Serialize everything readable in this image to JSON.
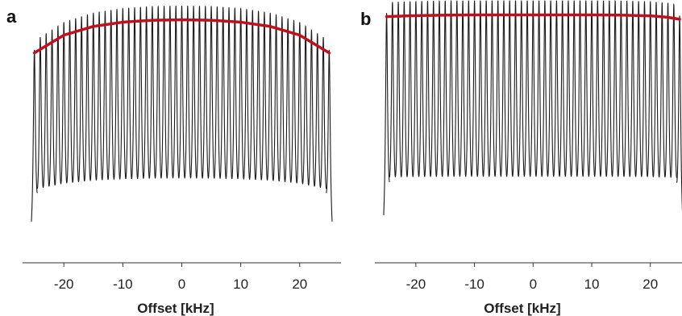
{
  "colors": {
    "peaks": "#1a1a1a",
    "envelope": "#c0101e",
    "axis": "#333333"
  },
  "chart_data": [
    {
      "panel_label": "a",
      "type": "line",
      "xlabel": "Offset [kHz]",
      "ylabel": "",
      "xlim": [
        -27,
        27
      ],
      "xticks": [
        -20,
        -10,
        0,
        10,
        20
      ],
      "tick_labels": [
        "-20",
        "-10",
        "0",
        "10",
        "20"
      ],
      "peaks": {
        "start": -25,
        "end": 25,
        "count": 51,
        "width_khz": 0.22
      },
      "envelope": {
        "x": [
          -25,
          -20,
          -15,
          -10,
          -5,
          0,
          5,
          10,
          15,
          20,
          25
        ],
        "y": [
          0.86,
          0.935,
          0.972,
          0.99,
          0.998,
          1.0,
          0.998,
          0.99,
          0.972,
          0.935,
          0.86
        ]
      },
      "ylim": [
        0,
        1.07
      ]
    },
    {
      "panel_label": "b",
      "type": "line",
      "xlabel": "Offset [kHz]",
      "ylabel": "",
      "xlim": [
        -27,
        25.4
      ],
      "xticks": [
        -20,
        -10,
        0,
        10,
        20
      ],
      "tick_labels": [
        "-20",
        "-10",
        "0",
        "10",
        "20"
      ],
      "peaks": {
        "start": -25,
        "end": 25,
        "count": 51,
        "width_khz": 0.22
      },
      "envelope": {
        "x": [
          -25,
          -20,
          -15,
          -10,
          -5,
          0,
          5,
          10,
          15,
          20,
          23,
          25
        ],
        "y": [
          0.993,
          0.997,
          0.999,
          1.0,
          1.0,
          1.0,
          1.0,
          1.0,
          0.999,
          0.996,
          0.99,
          0.982
        ]
      },
      "ylim": [
        0,
        1.035
      ]
    }
  ]
}
